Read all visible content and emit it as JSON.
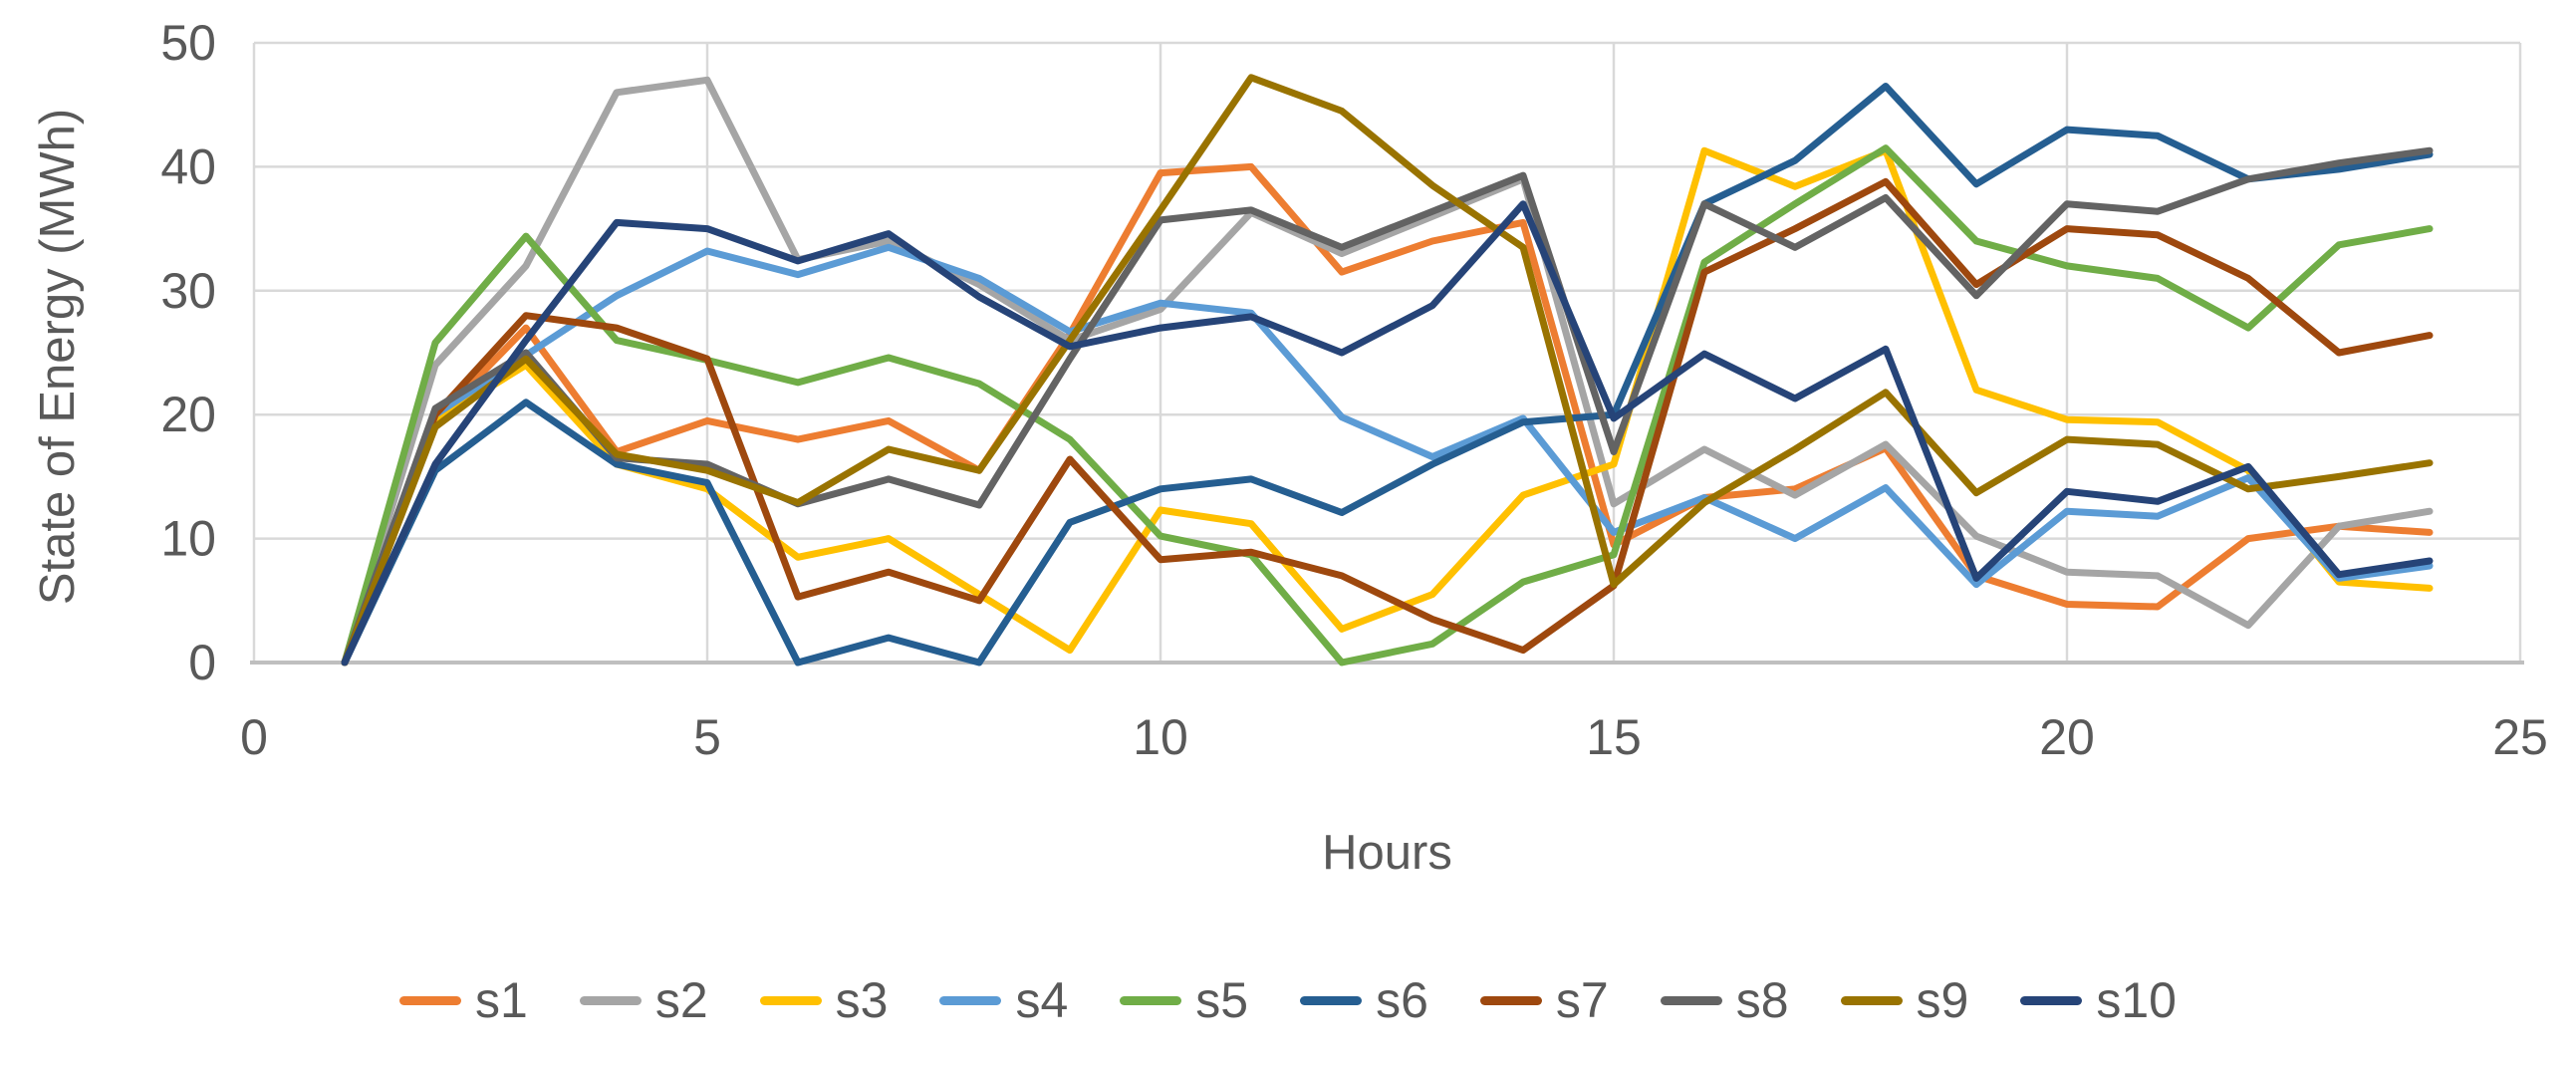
{
  "chart_data": {
    "type": "line",
    "title": "",
    "xlabel": "Hours",
    "ylabel": "State of Energy (MWh)",
    "x": [
      1,
      2,
      3,
      4,
      5,
      6,
      7,
      8,
      9,
      10,
      11,
      12,
      13,
      14,
      15,
      16,
      17,
      18,
      19,
      20,
      21,
      22,
      23,
      24
    ],
    "xlim": [
      0,
      25
    ],
    "ylim": [
      0,
      50
    ],
    "x_ticks": [
      0,
      5,
      10,
      15,
      20,
      25
    ],
    "y_ticks": [
      0,
      10,
      20,
      30,
      40,
      50
    ],
    "grid": true,
    "legend_position": "bottom",
    "series": [
      {
        "name": "s1",
        "color": "#ED7D31",
        "values": [
          0,
          19.5,
          27,
          17,
          19.5,
          18,
          19.5,
          15.5,
          26.5,
          39.5,
          40,
          31.5,
          34,
          35.5,
          9.5,
          13.3,
          14,
          17.3,
          7,
          4.7,
          4.5,
          10,
          11,
          10.5
        ]
      },
      {
        "name": "s2",
        "color": "#A5A5A5",
        "values": [
          0,
          24,
          32,
          46,
          47,
          32.5,
          34,
          30.5,
          26,
          28.5,
          36.3,
          33,
          36,
          39,
          12.8,
          17.2,
          13.5,
          17.6,
          10.2,
          7.3,
          7,
          3,
          11,
          12.2
        ]
      },
      {
        "name": "s3",
        "color": "#FFC000",
        "values": [
          0,
          19.5,
          24,
          16,
          14,
          8.5,
          10,
          5.5,
          1,
          12.3,
          11.2,
          2.7,
          5.5,
          13.5,
          16,
          41.3,
          38.4,
          41.3,
          22,
          19.6,
          19.4,
          15.5,
          6.5,
          6
        ]
      },
      {
        "name": "s4",
        "color": "#5B9BD5",
        "values": [
          0,
          20,
          24.8,
          29.6,
          33.2,
          31.3,
          33.5,
          31,
          26.7,
          29,
          28.2,
          19.8,
          16.6,
          19.7,
          10.5,
          13.3,
          10,
          14.1,
          6.3,
          12.2,
          11.8,
          14.9,
          6.8,
          7.8
        ]
      },
      {
        "name": "s5",
        "color": "#70AD47",
        "values": [
          0,
          25.8,
          34.4,
          26,
          24.4,
          22.6,
          24.6,
          22.5,
          18,
          10.2,
          8.7,
          0,
          1.5,
          6.5,
          8.7,
          32.3,
          37,
          41.5,
          34,
          32,
          31,
          27,
          33.7,
          35
        ]
      },
      {
        "name": "s6",
        "color": "#255E91",
        "values": [
          0,
          15.5,
          21,
          16,
          14.5,
          0,
          2,
          0,
          11.3,
          14,
          14.8,
          12.1,
          16,
          19.4,
          20,
          37,
          40.5,
          46.5,
          38.6,
          43,
          42.5,
          39,
          39.8,
          41
        ]
      },
      {
        "name": "s7",
        "color": "#9E480E",
        "values": [
          0,
          20,
          28,
          27,
          24.5,
          5.3,
          7.3,
          5,
          16.4,
          8.3,
          8.9,
          7,
          3.5,
          1,
          6.2,
          31.5,
          35,
          38.8,
          30.5,
          35,
          34.5,
          31,
          25,
          26.4
        ]
      },
      {
        "name": "s8",
        "color": "#636363",
        "values": [
          0,
          20.5,
          25,
          16.5,
          16,
          12.8,
          14.8,
          12.7,
          24.5,
          35.7,
          36.5,
          33.5,
          36.4,
          39.3,
          17,
          37,
          33.5,
          37.5,
          29.6,
          37,
          36.4,
          39,
          40.3,
          41.3
        ]
      },
      {
        "name": "s9",
        "color": "#997300",
        "values": [
          0,
          19,
          24.5,
          16.8,
          15.5,
          12.9,
          17.2,
          15.5,
          26,
          36.5,
          47.2,
          44.5,
          38.5,
          33.5,
          6.3,
          12.9,
          17.2,
          21.8,
          13.7,
          18,
          17.6,
          14,
          15,
          16.1
        ]
      },
      {
        "name": "s10",
        "color": "#264478",
        "values": [
          0,
          16,
          26,
          35.5,
          35,
          32.4,
          34.6,
          29.5,
          25.5,
          27,
          27.9,
          25,
          28.8,
          37,
          19.7,
          24.9,
          21.3,
          25.3,
          6.8,
          13.8,
          13,
          15.8,
          7.1,
          8.2
        ]
      }
    ]
  },
  "style": {
    "text_color": "#595959",
    "grid_color": "#D9D9D9",
    "axis_color": "#BFBFBF",
    "background": "#FFFFFF"
  }
}
